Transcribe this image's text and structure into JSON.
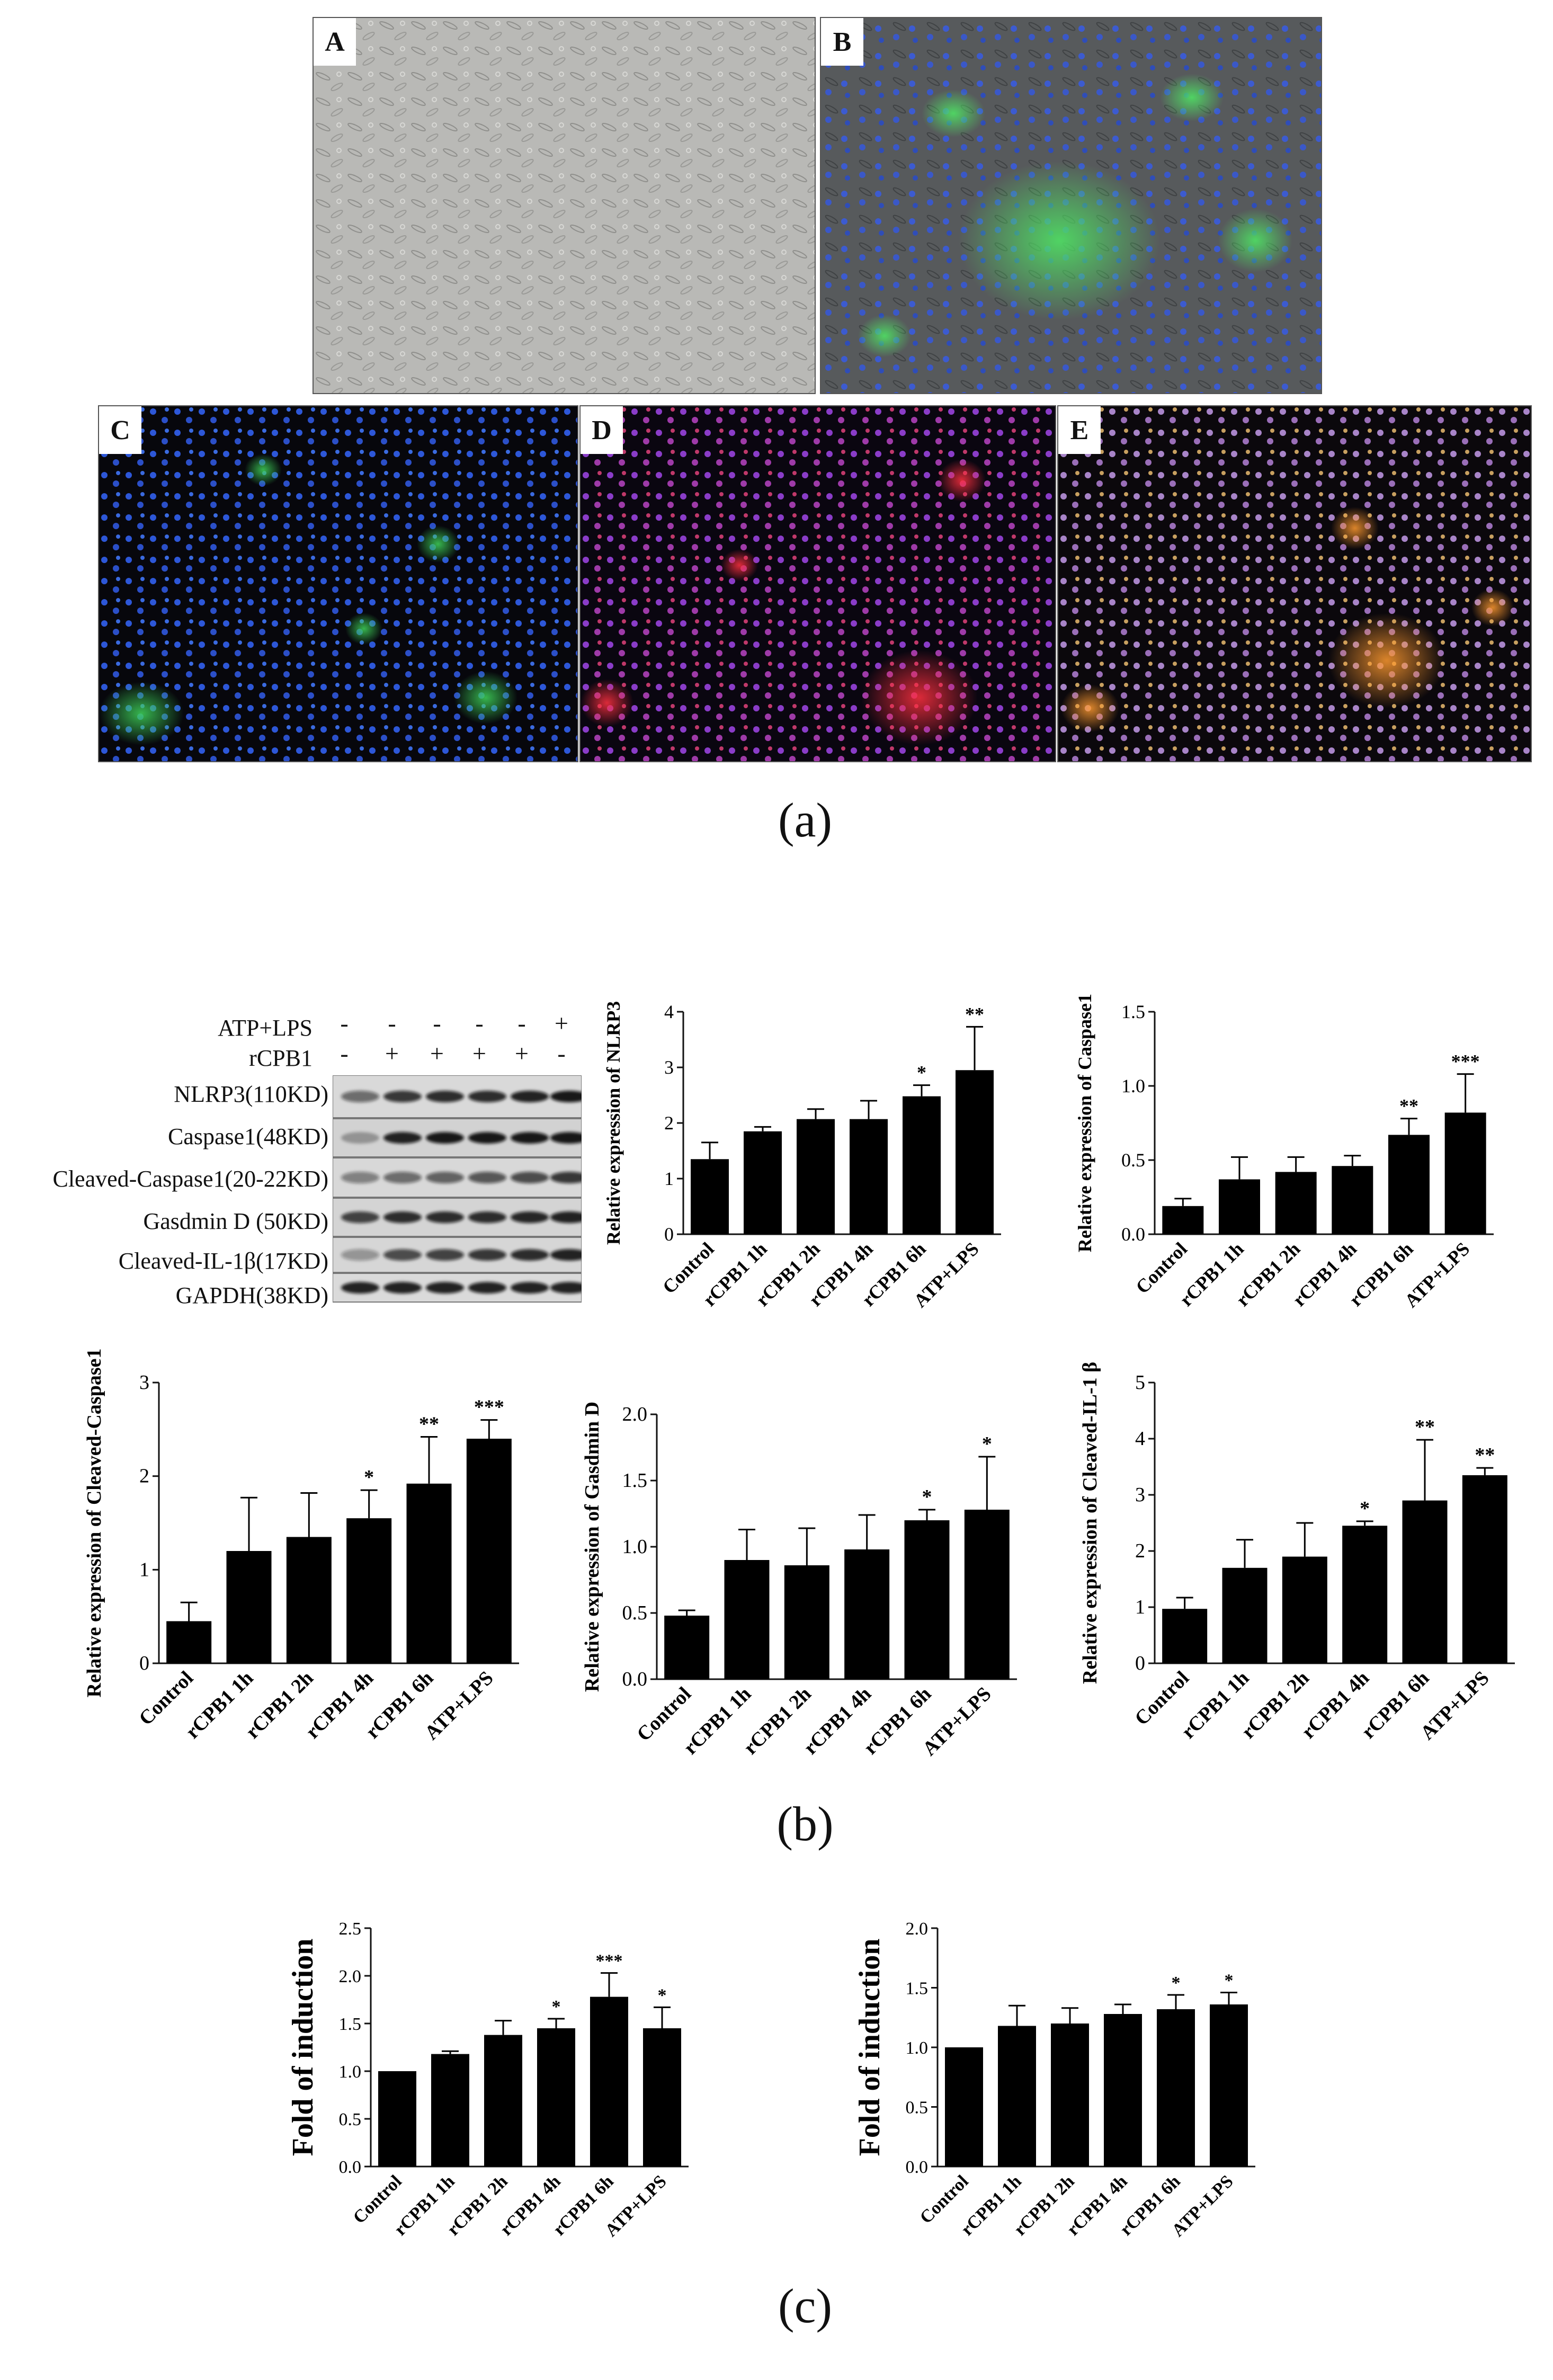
{
  "panel_a": {
    "caption": "(a)",
    "images": [
      {
        "letter": "A",
        "kind": "brightfield"
      },
      {
        "letter": "B",
        "kind": "green-overlay"
      },
      {
        "letter": "C",
        "kind": "green-blue"
      },
      {
        "letter": "D",
        "kind": "red-blue"
      },
      {
        "letter": "E",
        "kind": "merged"
      }
    ]
  },
  "panel_b": {
    "caption": "(b)",
    "blot": {
      "treatments": [
        {
          "label": "ATP+LPS",
          "signs": [
            "-",
            "-",
            "-",
            "-",
            "-",
            "+"
          ]
        },
        {
          "label": "rCPB1",
          "signs": [
            "-",
            "+",
            "+",
            "+",
            "+",
            "-"
          ]
        }
      ],
      "bands": [
        "NLRP3(110KD)",
        "Caspase1(48KD)",
        "Cleaved-Caspase1(20-22KD)",
        "Gasdmin D (50KD)",
        "Cleaved-IL-1β(17KD)",
        "GAPDH(38KD)"
      ]
    }
  },
  "panel_c": {
    "caption": "(c)"
  },
  "colors": {
    "bar": "#000000",
    "axis": "#111111"
  },
  "chart_data": [
    {
      "type": "bar",
      "id": "nlrp3",
      "ylabel": "Relative expression of NLRP3",
      "categories": [
        "Control",
        "rCPB1 1h",
        "rCPB1 2h",
        "rCPB1 4h",
        "rCPB1 6h",
        "ATP+LPS"
      ],
      "values": [
        1.35,
        1.85,
        2.07,
        2.07,
        2.48,
        2.95
      ],
      "errors": [
        0.3,
        0.08,
        0.18,
        0.33,
        0.2,
        0.78
      ],
      "significance": [
        "",
        "",
        "",
        "",
        "*",
        "**"
      ],
      "ylim": [
        0,
        4
      ],
      "yticks": [
        0,
        1,
        2,
        3,
        4
      ],
      "ytick_labels": [
        "0",
        "1",
        "2",
        "3",
        "4"
      ]
    },
    {
      "type": "bar",
      "id": "caspase1",
      "ylabel": "Relative expression of Caspase1",
      "categories": [
        "Control",
        "rCPB1 1h",
        "rCPB1 2h",
        "rCPB1 4h",
        "rCPB1 6h",
        "ATP+LPS"
      ],
      "values": [
        0.19,
        0.37,
        0.42,
        0.46,
        0.67,
        0.82
      ],
      "errors": [
        0.05,
        0.15,
        0.1,
        0.07,
        0.11,
        0.26
      ],
      "significance": [
        "",
        "",
        "",
        "",
        "**",
        "***"
      ],
      "ylim": [
        0,
        1.5
      ],
      "yticks": [
        0,
        0.5,
        1.0,
        1.5
      ],
      "ytick_labels": [
        "0.0",
        "0.5",
        "1.0",
        "1.5"
      ]
    },
    {
      "type": "bar",
      "id": "cleaved-caspase1",
      "ylabel": "Relative expression of Cleaved-Caspase1",
      "categories": [
        "Control",
        "rCPB1 1h",
        "rCPB1 2h",
        "rCPB1 4h",
        "rCPB1 6h",
        "ATP+LPS"
      ],
      "values": [
        0.45,
        1.2,
        1.35,
        1.55,
        1.92,
        2.4
      ],
      "errors": [
        0.2,
        0.57,
        0.47,
        0.3,
        0.5,
        0.2
      ],
      "significance": [
        "",
        "",
        "",
        "*",
        "**",
        "***"
      ],
      "ylim": [
        0,
        3
      ],
      "yticks": [
        0,
        1,
        2,
        3
      ],
      "ytick_labels": [
        "0",
        "1",
        "2",
        "3"
      ]
    },
    {
      "type": "bar",
      "id": "gasdmin-d",
      "ylabel": "Relative expression of Gasdmin D",
      "categories": [
        "Control",
        "rCPB1 1h",
        "rCPB1 2h",
        "rCPB1 4h",
        "rCPB1 6h",
        "ATP+LPS"
      ],
      "values": [
        0.48,
        0.9,
        0.86,
        0.98,
        1.2,
        1.28
      ],
      "errors": [
        0.04,
        0.23,
        0.28,
        0.26,
        0.08,
        0.4
      ],
      "significance": [
        "",
        "",
        "",
        "",
        "*",
        "*"
      ],
      "ylim": [
        0,
        2.0
      ],
      "yticks": [
        0,
        0.5,
        1.0,
        1.5,
        2.0
      ],
      "ytick_labels": [
        "0.0",
        "0.5",
        "1.0",
        "1.5",
        "2.0"
      ]
    },
    {
      "type": "bar",
      "id": "cleaved-il1b",
      "ylabel": "Relative expression of Cleaved-IL-1 β",
      "categories": [
        "Control",
        "rCPB1 1h",
        "rCPB1 2h",
        "rCPB1 4h",
        "rCPB1 6h",
        "ATP+LPS"
      ],
      "values": [
        0.97,
        1.7,
        1.9,
        2.45,
        2.9,
        3.35
      ],
      "errors": [
        0.2,
        0.5,
        0.6,
        0.08,
        1.08,
        0.13
      ],
      "significance": [
        "",
        "",
        "",
        "*",
        "**",
        "**"
      ],
      "ylim": [
        0,
        5
      ],
      "yticks": [
        0,
        1,
        2,
        3,
        4,
        5
      ],
      "ytick_labels": [
        "0",
        "1",
        "2",
        "3",
        "4",
        "5"
      ]
    },
    {
      "type": "bar",
      "id": "fold-left",
      "ylabel": "Fold of induction",
      "categories": [
        "Control",
        "rCPB1 1h",
        "rCPB1 2h",
        "rCPB1 4h",
        "rCPB1 6h",
        "ATP+LPS"
      ],
      "values": [
        1.0,
        1.18,
        1.38,
        1.45,
        1.78,
        1.45
      ],
      "errors": [
        0.0,
        0.03,
        0.15,
        0.1,
        0.25,
        0.22
      ],
      "significance": [
        "",
        "",
        "",
        "*",
        "***",
        "*"
      ],
      "ylim": [
        0,
        2.5
      ],
      "yticks": [
        0,
        0.5,
        1.0,
        1.5,
        2.0,
        2.5
      ],
      "ytick_labels": [
        "0.0",
        "0.5",
        "1.0",
        "1.5",
        "2.0",
        "2.5"
      ]
    },
    {
      "type": "bar",
      "id": "fold-right",
      "ylabel": "Fold of induction",
      "categories": [
        "Control",
        "rCPB1 1h",
        "rCPB1 2h",
        "rCPB1 4h",
        "rCPB1 6h",
        "ATP+LPS"
      ],
      "values": [
        1.0,
        1.18,
        1.2,
        1.28,
        1.32,
        1.36
      ],
      "errors": [
        0.0,
        0.17,
        0.13,
        0.08,
        0.12,
        0.1
      ],
      "significance": [
        "",
        "",
        "",
        "",
        "*",
        "*"
      ],
      "ylim": [
        0,
        2.0
      ],
      "yticks": [
        0,
        0.5,
        1.0,
        1.5,
        2.0
      ],
      "ytick_labels": [
        "0.0",
        "0.5",
        "1.0",
        "1.5",
        "2.0"
      ]
    }
  ]
}
